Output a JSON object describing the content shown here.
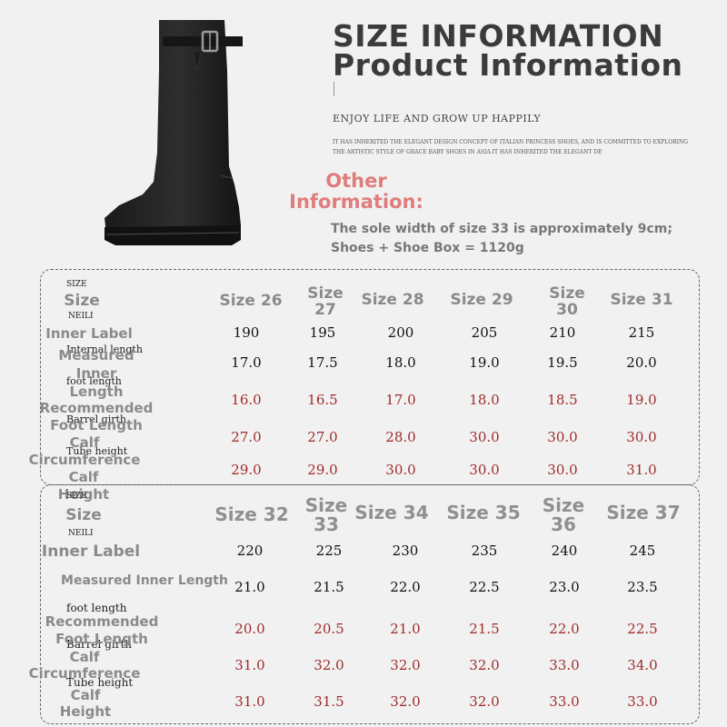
{
  "header": {
    "title_line1": "SIZE INFORMATION",
    "title_line2": "Product Information",
    "slogan": "ENJOY LIFE AND GROW UP HAPPILY",
    "description": "IT HAS INHERITED THE ELEGANT DESIGN CONCEPT OF ITALIAN PRINCESS SHOES, AND IS COMMITTED TO EXPLORING THE ARTISTIC STYLE OF GRACE BABY SHOES IN ASIA.IT HAS INHERITED THE ELEGANT DE"
  },
  "other_info": {
    "heading_line1": "Other",
    "heading_line2": "Information:",
    "line1": "The sole width of size 33 is approximately 9cm;",
    "line2": "Shoes + Shoe Box = 1120g"
  },
  "colors": {
    "title": "#3b3b3b",
    "heading_accent": "#e07c7c",
    "value_red": "#9e2b2b"
  },
  "table1": {
    "small_labels": {
      "size": "SIZE",
      "neili": "NEILI",
      "internal_length": "Internal length",
      "foot_length": "foot length",
      "barrel_girth": "Barrel girth",
      "tube_height": "Tube height"
    },
    "row_labels": {
      "size": "Size",
      "inner_label": "Inner Label",
      "measured_inner_length": "Measured Inner Length",
      "recommended_foot_length": "Recommended Foot Length",
      "calf_circumference": "Calf Circumference",
      "calf_height": "Calf Height"
    },
    "sizes": [
      "Size 26",
      "Size 27",
      "Size 28",
      "Size 29",
      "Size 30",
      "Size 31"
    ],
    "inner_label": [
      "190",
      "195",
      "200",
      "205",
      "210",
      "215"
    ],
    "measured_inner_length": [
      "17.0",
      "17.5",
      "18.0",
      "19.0",
      "19.5",
      "20.0"
    ],
    "recommended_foot_length": [
      "16.0",
      "16.5",
      "17.0",
      "18.0",
      "18.5",
      "19.0"
    ],
    "calf_circumference": [
      "27.0",
      "27.0",
      "28.0",
      "30.0",
      "30.0",
      "30.0"
    ],
    "calf_height": [
      "29.0",
      "29.0",
      "30.0",
      "30.0",
      "30.0",
      "31.0"
    ]
  },
  "table2": {
    "small_labels": {
      "size": "SIZE",
      "neili": "NEILI",
      "foot_length": "foot length",
      "barrel_girth": "Barrel girth",
      "tube_height": "Tube height"
    },
    "row_labels": {
      "size": "Size",
      "inner_label": "Inner Label",
      "measured_inner_length": "Measured Inner Length",
      "recommended_foot_length": "Recommended Foot Length",
      "calf_circumference": "Calf Circumference",
      "calf_height": "Calf Height"
    },
    "sizes": [
      "Size 32",
      "Size 33",
      "Size 34",
      "Size 35",
      "Size 36",
      "Size 37"
    ],
    "inner_label": [
      "220",
      "225",
      "230",
      "235",
      "240",
      "245"
    ],
    "measured_inner_length": [
      "21.0",
      "21.5",
      "22.0",
      "22.5",
      "23.0",
      "23.5"
    ],
    "recommended_foot_length": [
      "20.0",
      "20.5",
      "21.0",
      "21.5",
      "22.0",
      "22.5"
    ],
    "calf_circumference": [
      "31.0",
      "32.0",
      "32.0",
      "32.0",
      "33.0",
      "34.0"
    ],
    "calf_height": [
      "31.0",
      "31.5",
      "32.0",
      "32.0",
      "33.0",
      "33.0"
    ]
  }
}
